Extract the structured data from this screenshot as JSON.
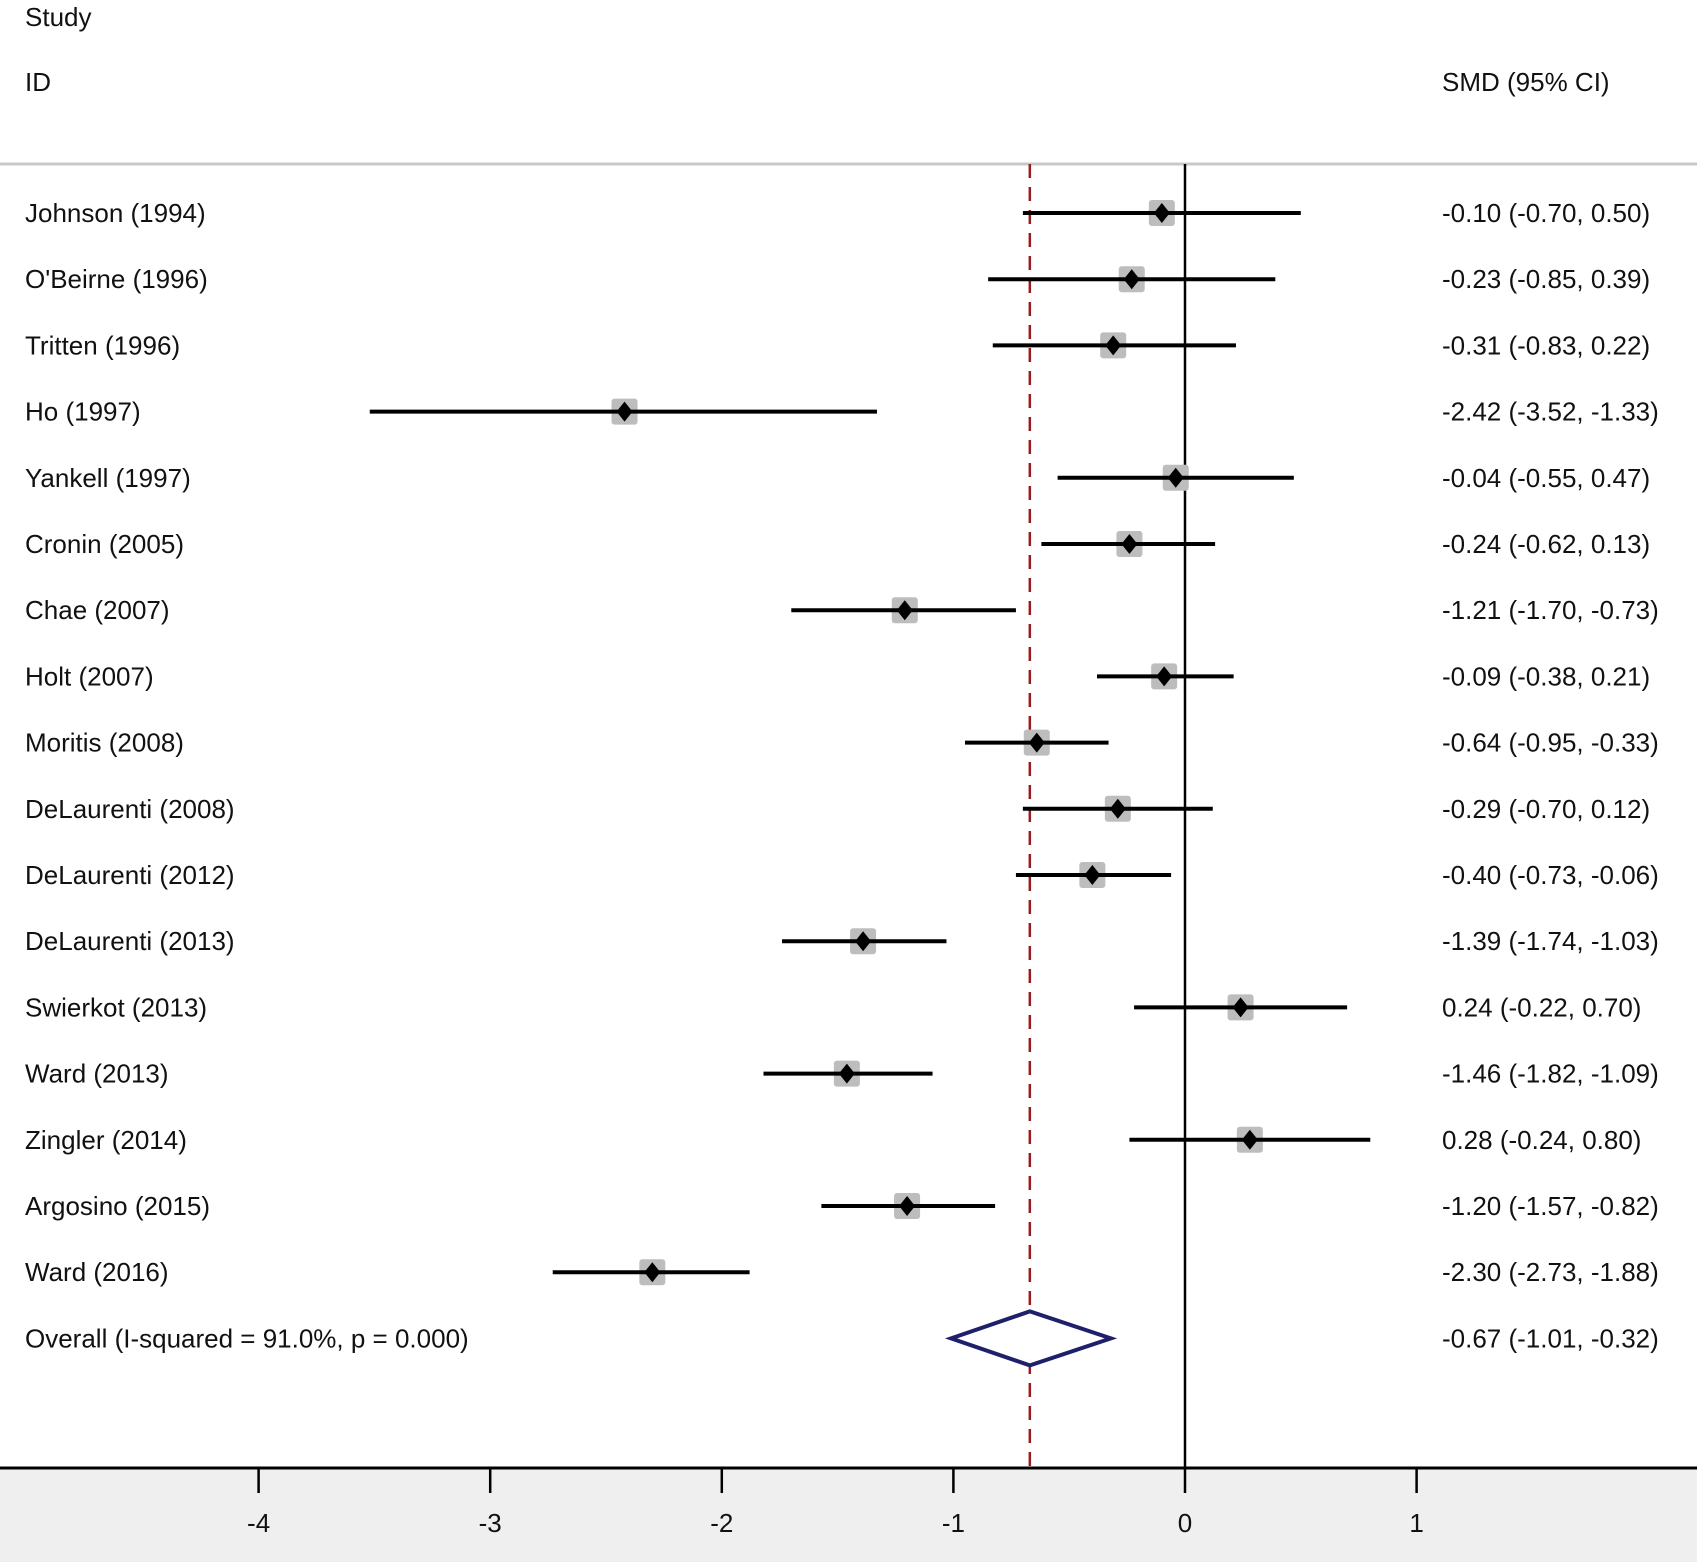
{
  "chart_data": {
    "type": "forest",
    "header": {
      "study": "Study",
      "id": "ID",
      "effect": "SMD (95% CI)"
    },
    "studies": [
      {
        "label": "Johnson (1994)",
        "smd": -0.1,
        "lo": -0.7,
        "hi": 0.5,
        "text": "-0.10 (-0.70, 0.50)"
      },
      {
        "label": "O'Beirne (1996)",
        "smd": -0.23,
        "lo": -0.85,
        "hi": 0.39,
        "text": "-0.23 (-0.85, 0.39)"
      },
      {
        "label": "Tritten (1996)",
        "smd": -0.31,
        "lo": -0.83,
        "hi": 0.22,
        "text": "-0.31 (-0.83, 0.22)"
      },
      {
        "label": "Ho (1997)",
        "smd": -2.42,
        "lo": -3.52,
        "hi": -1.33,
        "text": "-2.42 (-3.52, -1.33)"
      },
      {
        "label": "Yankell (1997)",
        "smd": -0.04,
        "lo": -0.55,
        "hi": 0.47,
        "text": "-0.04 (-0.55, 0.47)"
      },
      {
        "label": "Cronin (2005)",
        "smd": -0.24,
        "lo": -0.62,
        "hi": 0.13,
        "text": "-0.24 (-0.62, 0.13)"
      },
      {
        "label": "Chae (2007)",
        "smd": -1.21,
        "lo": -1.7,
        "hi": -0.73,
        "text": "-1.21 (-1.70, -0.73)"
      },
      {
        "label": "Holt (2007)",
        "smd": -0.09,
        "lo": -0.38,
        "hi": 0.21,
        "text": "-0.09 (-0.38, 0.21)"
      },
      {
        "label": "Moritis (2008)",
        "smd": -0.64,
        "lo": -0.95,
        "hi": -0.33,
        "text": "-0.64 (-0.95, -0.33)"
      },
      {
        "label": "DeLaurenti (2008)",
        "smd": -0.29,
        "lo": -0.7,
        "hi": 0.12,
        "text": "-0.29 (-0.70, 0.12)"
      },
      {
        "label": "DeLaurenti (2012)",
        "smd": -0.4,
        "lo": -0.73,
        "hi": -0.06,
        "text": "-0.40 (-0.73, -0.06)"
      },
      {
        "label": "DeLaurenti (2013)",
        "smd": -1.39,
        "lo": -1.74,
        "hi": -1.03,
        "text": "-1.39 (-1.74, -1.03)"
      },
      {
        "label": "Swierkot (2013)",
        "smd": 0.24,
        "lo": -0.22,
        "hi": 0.7,
        "text": "0.24 (-0.22, 0.70)"
      },
      {
        "label": "Ward (2013)",
        "smd": -1.46,
        "lo": -1.82,
        "hi": -1.09,
        "text": "-1.46 (-1.82, -1.09)"
      },
      {
        "label": "Zingler (2014)",
        "smd": 0.28,
        "lo": -0.24,
        "hi": 0.8,
        "text": "0.28 (-0.24, 0.80)"
      },
      {
        "label": "Argosino (2015)",
        "smd": -1.2,
        "lo": -1.57,
        "hi": -0.82,
        "text": "-1.20 (-1.57, -0.82)"
      },
      {
        "label": "Ward (2016)",
        "smd": -2.3,
        "lo": -2.73,
        "hi": -1.88,
        "text": "-2.30 (-2.73, -1.88)"
      }
    ],
    "overall": {
      "label": "Overall  (I-squared = 91.0%, p = 0.000)",
      "smd": -0.67,
      "lo": -1.01,
      "hi": -0.32,
      "text": "-0.67 (-1.01, -0.32)"
    },
    "x_ticks": [
      -4,
      -3,
      -2,
      -1,
      0,
      1
    ],
    "x_tick_labels": [
      "-4",
      "-3",
      "-2",
      "-1",
      "0",
      "1"
    ],
    "colors": {
      "overall_diamond": "#1f1f6b",
      "overall_line": "#9b1c1c",
      "weight_box": "#bdbdbd",
      "axis_band": "#efefef"
    }
  }
}
